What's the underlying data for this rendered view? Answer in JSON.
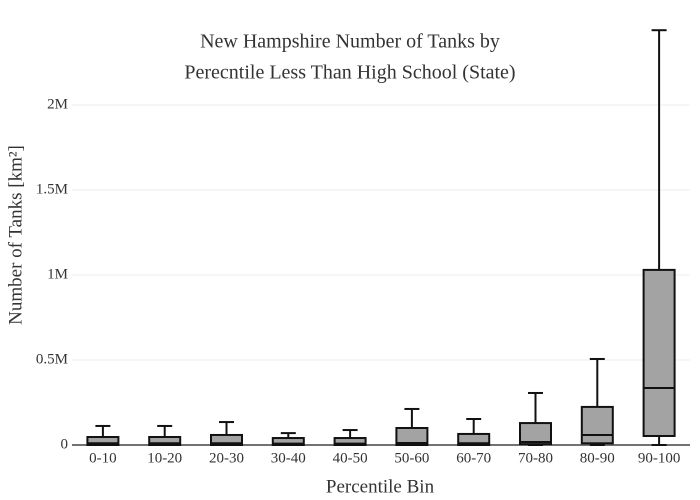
{
  "chart_data": {
    "type": "box",
    "title": [
      "New Hampshire Number of Tanks by",
      "Perecntile Less Than High School (State)"
    ],
    "xlabel": "Percentile Bin",
    "ylabel": "Number of Tanks  [km²]",
    "categories": [
      "0-10",
      "10-20",
      "20-30",
      "30-40",
      "40-50",
      "50-60",
      "60-70",
      "70-80",
      "80-90",
      "90-100"
    ],
    "min": [
      0,
      0,
      0,
      0,
      0,
      0,
      0,
      0,
      0,
      0
    ],
    "q1": [
      0,
      0,
      0,
      0,
      0,
      0,
      0,
      5000,
      10000,
      53000
    ],
    "median": [
      10000,
      10000,
      10000,
      8000,
      8000,
      12000,
      10000,
      18000,
      59000,
      335000
    ],
    "q3": [
      47000,
      47000,
      59000,
      41000,
      41000,
      100000,
      65000,
      129000,
      224000,
      1030000
    ],
    "max": [
      112000,
      112000,
      135000,
      70000,
      88000,
      212000,
      153000,
      306000,
      506000,
      2440000
    ],
    "color": "#a3a3a3",
    "ylim": [
      0,
      2500000
    ],
    "yticks": [
      0,
      {
        "value": 500000,
        "label": "0.5M"
      },
      {
        "value": 1000000,
        "label": "1M"
      },
      {
        "value": 1500000,
        "label": "1.5M"
      },
      {
        "value": 2000000,
        "label": "2M"
      }
    ],
    "grid": true
  }
}
